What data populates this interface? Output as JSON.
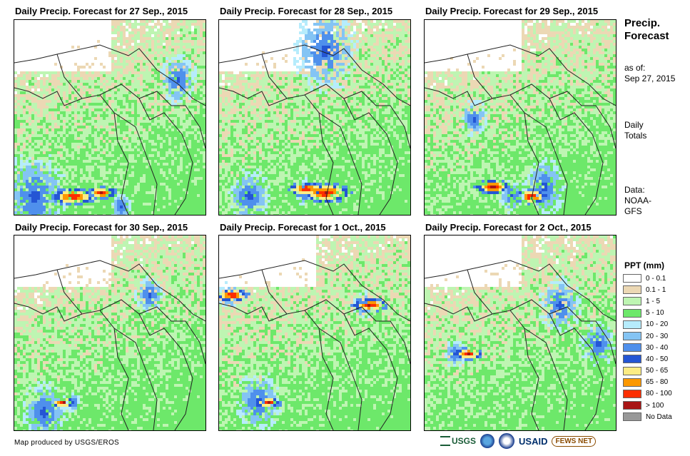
{
  "panels": [
    {
      "title": "Daily Precip. Forecast for 27 Sep., 2015",
      "heavy": [
        [
          0.45,
          0.88,
          0.52
        ],
        [
          0.3,
          0.9,
          0.72
        ]
      ],
      "med": [
        [
          0.55,
          0.95,
          0.3
        ],
        [
          0.1,
          0.9,
          0.95
        ],
        [
          0.85,
          0.3,
          0.55
        ]
      ]
    },
    {
      "title": "Daily Precip. Forecast for 28 Sep., 2015",
      "heavy": [
        [
          0.45,
          0.86,
          0.6
        ],
        [
          0.55,
          0.88,
          0.85
        ]
      ],
      "med": [
        [
          0.45,
          0.88,
          0.3
        ],
        [
          0.15,
          0.9,
          0.6
        ],
        [
          0.55,
          0.15,
          0.9
        ]
      ]
    },
    {
      "title": "Daily Precip. Forecast for 29 Sep., 2015",
      "heavy": [
        [
          0.35,
          0.85,
          0.6
        ],
        [
          0.55,
          0.9,
          0.6
        ]
      ],
      "med": [
        [
          0.45,
          0.9,
          0.35
        ],
        [
          0.62,
          0.85,
          0.6
        ],
        [
          0.25,
          0.5,
          0.4
        ]
      ]
    },
    {
      "title": "Daily Precip. Forecast for 30 Sep., 2015",
      "heavy": [
        [
          0.25,
          0.85,
          0.45
        ]
      ],
      "med": [
        [
          0.3,
          0.85,
          0.2
        ],
        [
          0.15,
          0.9,
          0.65
        ],
        [
          0.7,
          0.3,
          0.4
        ]
      ]
    },
    {
      "title": "Daily Precip. Forecast for 1 Oct., 2015",
      "heavy": [
        [
          0.06,
          0.3,
          0.55
        ],
        [
          0.78,
          0.35,
          0.6
        ],
        [
          0.25,
          0.85,
          0.45
        ]
      ],
      "med": [
        [
          0.2,
          0.85,
          0.65
        ],
        [
          0.05,
          0.3,
          0.3
        ],
        [
          0.75,
          0.35,
          0.3
        ]
      ]
    },
    {
      "title": "Daily Precip. Forecast for 2 Oct., 2015",
      "heavy": [
        [
          0.22,
          0.6,
          0.5
        ]
      ],
      "med": [
        [
          0.15,
          0.6,
          0.3
        ],
        [
          0.7,
          0.35,
          0.6
        ],
        [
          0.9,
          0.55,
          0.5
        ]
      ]
    }
  ],
  "sidebar": {
    "title_line1": "Precip.",
    "title_line2": "Forecast",
    "asof_label": "as of:",
    "asof_date": "Sep 27, 2015",
    "totals_line1": "Daily",
    "totals_line2": "Totals",
    "data_line1": "Data:",
    "data_line2": "NOAA-",
    "data_line3": "GFS"
  },
  "legend": {
    "title": "PPT (mm)",
    "items": [
      {
        "label": "0 - 0.1",
        "color": "#ffffff"
      },
      {
        "label": "0.1 - 1",
        "color": "#ecd8b4"
      },
      {
        "label": "1 - 5",
        "color": "#bef5b2"
      },
      {
        "label": "5 - 10",
        "color": "#6de86a"
      },
      {
        "label": "10 - 20",
        "color": "#b6ecfc"
      },
      {
        "label": "20 - 30",
        "color": "#84c4f4"
      },
      {
        "label": "30 - 40",
        "color": "#4f90ec"
      },
      {
        "label": "40 - 50",
        "color": "#2456d4"
      },
      {
        "label": "50 - 65",
        "color": "#fcec84"
      },
      {
        "label": "65 - 80",
        "color": "#fc9800"
      },
      {
        "label": "80 - 100",
        "color": "#fc2e00"
      },
      {
        "label": "> 100",
        "color": "#a81616"
      },
      {
        "label": "No Data",
        "color": "#989898"
      }
    ]
  },
  "footer": {
    "credit": "Map produced by USGS/EROS",
    "logo_usgs": "USGS",
    "logo_usaid": "USAID",
    "logo_fews": "FEWS NET"
  }
}
